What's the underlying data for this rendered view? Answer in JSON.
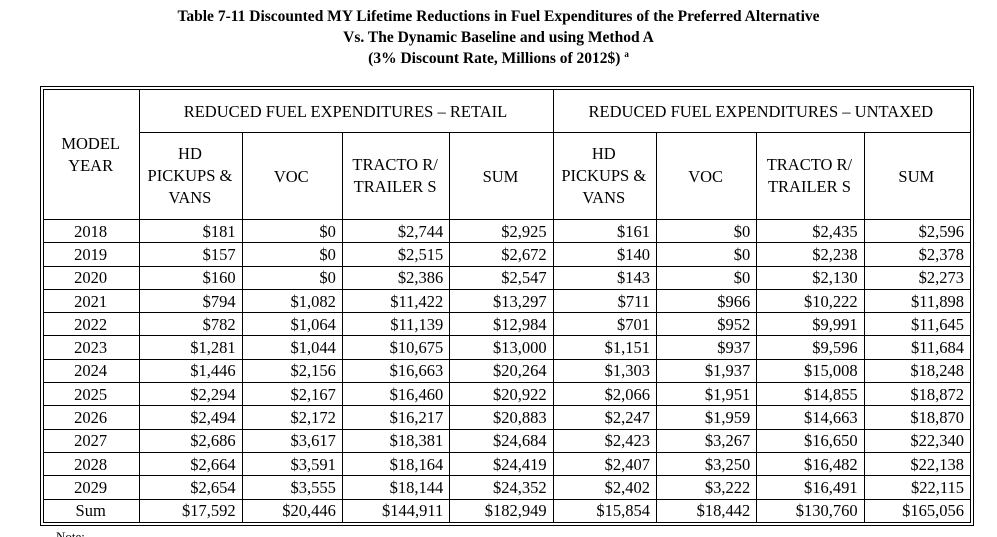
{
  "title": {
    "line1": "Table 7-11  Discounted MY Lifetime Reductions in Fuel Expenditures of the Preferred Alternative",
    "line2": "Vs. The Dynamic Baseline and using Method A",
    "line3": "(3% Discount Rate, Millions of 2012$)",
    "superscript": "a"
  },
  "header": {
    "model_year": "MODEL YEAR",
    "group_retail": "REDUCED FUEL EXPENDITURES – RETAIL",
    "group_untaxed": "REDUCED FUEL EXPENDITURES – UNTAXED",
    "col_hd": "HD PICKUPS & VANS",
    "col_voc": "VOC",
    "col_tractor": "TRACTO R/ TRAILER S",
    "col_sum": "SUM"
  },
  "rows": [
    {
      "year": "2018",
      "r_hd": "$181",
      "r_voc": "$0",
      "r_tt": "$2,744",
      "r_sum": "$2,925",
      "u_hd": "$161",
      "u_voc": "$0",
      "u_tt": "$2,435",
      "u_sum": "$2,596"
    },
    {
      "year": "2019",
      "r_hd": "$157",
      "r_voc": "$0",
      "r_tt": "$2,515",
      "r_sum": "$2,672",
      "u_hd": "$140",
      "u_voc": "$0",
      "u_tt": "$2,238",
      "u_sum": "$2,378"
    },
    {
      "year": "2020",
      "r_hd": "$160",
      "r_voc": "$0",
      "r_tt": "$2,386",
      "r_sum": "$2,547",
      "u_hd": "$143",
      "u_voc": "$0",
      "u_tt": "$2,130",
      "u_sum": "$2,273"
    },
    {
      "year": "2021",
      "r_hd": "$794",
      "r_voc": "$1,082",
      "r_tt": "$11,422",
      "r_sum": "$13,297",
      "u_hd": "$711",
      "u_voc": "$966",
      "u_tt": "$10,222",
      "u_sum": "$11,898"
    },
    {
      "year": "2022",
      "r_hd": "$782",
      "r_voc": "$1,064",
      "r_tt": "$11,139",
      "r_sum": "$12,984",
      "u_hd": "$701",
      "u_voc": "$952",
      "u_tt": "$9,991",
      "u_sum": "$11,645"
    },
    {
      "year": "2023",
      "r_hd": "$1,281",
      "r_voc": "$1,044",
      "r_tt": "$10,675",
      "r_sum": "$13,000",
      "u_hd": "$1,151",
      "u_voc": "$937",
      "u_tt": "$9,596",
      "u_sum": "$11,684"
    },
    {
      "year": "2024",
      "r_hd": "$1,446",
      "r_voc": "$2,156",
      "r_tt": "$16,663",
      "r_sum": "$20,264",
      "u_hd": "$1,303",
      "u_voc": "$1,937",
      "u_tt": "$15,008",
      "u_sum": "$18,248"
    },
    {
      "year": "2025",
      "r_hd": "$2,294",
      "r_voc": "$2,167",
      "r_tt": "$16,460",
      "r_sum": "$20,922",
      "u_hd": "$2,066",
      "u_voc": "$1,951",
      "u_tt": "$14,855",
      "u_sum": "$18,872"
    },
    {
      "year": "2026",
      "r_hd": "$2,494",
      "r_voc": "$2,172",
      "r_tt": "$16,217",
      "r_sum": "$20,883",
      "u_hd": "$2,247",
      "u_voc": "$1,959",
      "u_tt": "$14,663",
      "u_sum": "$18,870"
    },
    {
      "year": "2027",
      "r_hd": "$2,686",
      "r_voc": "$3,617",
      "r_tt": "$18,381",
      "r_sum": "$24,684",
      "u_hd": "$2,423",
      "u_voc": "$3,267",
      "u_tt": "$16,650",
      "u_sum": "$22,340"
    },
    {
      "year": "2028",
      "r_hd": "$2,664",
      "r_voc": "$3,591",
      "r_tt": "$18,164",
      "r_sum": "$24,419",
      "u_hd": "$2,407",
      "u_voc": "$3,250",
      "u_tt": "$16,482",
      "u_sum": "$22,138"
    },
    {
      "year": "2029",
      "r_hd": "$2,654",
      "r_voc": "$3,555",
      "r_tt": "$18,144",
      "r_sum": "$24,352",
      "u_hd": "$2,402",
      "u_voc": "$3,222",
      "u_tt": "$16,491",
      "u_sum": "$22,115"
    },
    {
      "year": "Sum",
      "r_hd": "$17,592",
      "r_voc": "$20,446",
      "r_tt": "$144,911",
      "r_sum": "$182,949",
      "u_hd": "$15,854",
      "u_voc": "$18,442",
      "u_tt": "$130,760",
      "u_sum": "$165,056"
    }
  ],
  "footer": {
    "note_fragment": "Note:"
  }
}
